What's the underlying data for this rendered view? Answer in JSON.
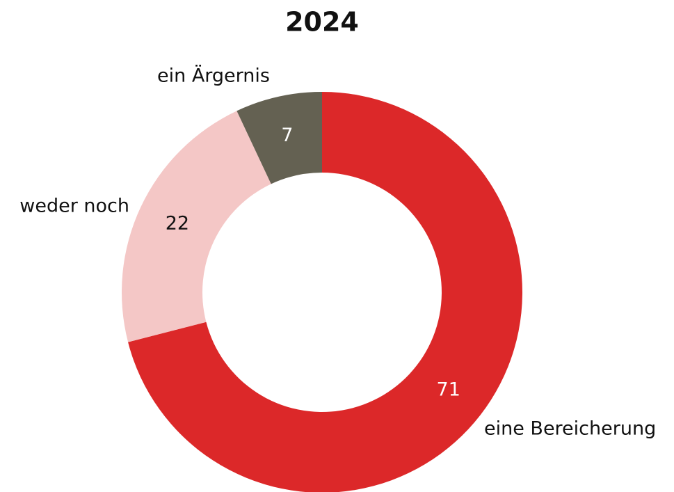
{
  "chart_data": {
    "type": "donut",
    "title": "2024",
    "categories": [
      "eine Bereicherung",
      "weder noch",
      "ein Ärgernis"
    ],
    "values": [
      71,
      22,
      7
    ],
    "colors": [
      "#dc2829",
      "#f4c7c6",
      "#646152"
    ]
  }
}
